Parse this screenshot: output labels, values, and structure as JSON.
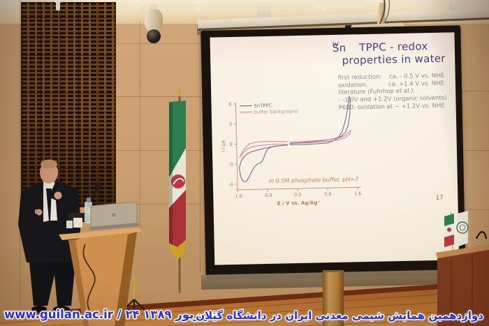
{
  "banner": {
    "left_text": "www.guilan.ac.ir / ۲۴ شهریور ۱۳۸۹",
    "right_text": "دوازدهمین همایش شیمی معدنی ایران در دانشگاه گیلان"
  },
  "slide": {
    "title_prefix": "Sn",
    "title_sup": "IV",
    "title_rest": "TPPC - redox properties in water",
    "info_lines": [
      "first reduction:    ca. - 0.5 V vs. NHE",
      "oxidation:           ca. +1.4 V vs. NHE",
      "literature (Fuhrhop et al.):",
      "- -1.0V and +1.2V (organic solvents)",
      "P680: oxidation at ~ +1.2V vs. NHE"
    ],
    "page_number": "17"
  },
  "chart_data": {
    "type": "line",
    "subtype": "cyclic-voltammogram",
    "title": "",
    "xlabel": "E / V vs. Ag/Ag⁺",
    "ylabel": "I / µA",
    "xlim": [
      -1.6,
      1.6
    ],
    "ylim": [
      -6,
      6
    ],
    "grid": false,
    "legend_position": "top-left",
    "annotation": "in 0.5M phosphate buffer, pH=7",
    "x_tick_values": [
      -1.6,
      -0.8,
      0.0,
      0.8,
      1.6
    ],
    "x_tick_labels": [
      "-1,6",
      "-0,8",
      "0,0",
      "0,8",
      "1,6"
    ],
    "y_tick_values": [
      6,
      3,
      0,
      -3,
      -6
    ],
    "y_tick_labels": [
      "6",
      "3",
      "0",
      "-3",
      "-6"
    ],
    "series": [
      {
        "name": "SnTPPC",
        "color": "#70708f",
        "segments": [
          [
            [
              -0.18,
              -0.25
            ],
            [
              0.2,
              -0.28
            ],
            [
              0.5,
              -0.22
            ],
            [
              0.8,
              -0.12
            ],
            [
              1.0,
              0.2
            ],
            [
              1.12,
              0.7
            ],
            [
              1.22,
              1.6
            ],
            [
              1.3,
              3.0
            ],
            [
              1.37,
              4.8
            ],
            [
              1.42,
              6.8
            ],
            [
              1.45,
              6.2
            ],
            [
              1.43,
              4.2
            ],
            [
              1.38,
              2.4
            ],
            [
              1.3,
              1.4
            ],
            [
              1.18,
              0.8
            ],
            [
              1.0,
              0.5
            ],
            [
              0.7,
              0.25
            ],
            [
              0.4,
              0.1
            ],
            [
              0.1,
              0.0
            ],
            [
              -0.18,
              -0.05
            ]
          ],
          [
            [
              -0.25,
              -0.3
            ],
            [
              -0.5,
              -0.4
            ],
            [
              -0.68,
              -0.55
            ],
            [
              -0.78,
              -0.85
            ],
            [
              -0.85,
              -1.6
            ],
            [
              -0.9,
              -2.4
            ],
            [
              -0.97,
              -2.85
            ],
            [
              -1.05,
              -3.05
            ],
            [
              -1.12,
              -3.35
            ],
            [
              -1.2,
              -4.0
            ],
            [
              -1.28,
              -4.9
            ],
            [
              -1.35,
              -5.55
            ],
            [
              -1.42,
              -5.65
            ],
            [
              -1.48,
              -5.35
            ],
            [
              -1.52,
              -4.6
            ],
            [
              -1.54,
              -3.6
            ],
            [
              -1.5,
              -2.7
            ],
            [
              -1.44,
              -2.1
            ],
            [
              -1.35,
              -1.6
            ],
            [
              -1.22,
              -1.2
            ],
            [
              -1.08,
              -1.0
            ],
            [
              -0.92,
              -0.8
            ],
            [
              -0.75,
              -0.6
            ],
            [
              -0.55,
              -0.42
            ],
            [
              -0.35,
              -0.33
            ],
            [
              -0.25,
              -0.3
            ]
          ]
        ]
      },
      {
        "name": "buffer background",
        "color": "#cf8e9b",
        "segments": [
          [
            [
              -0.18,
              0.12
            ],
            [
              0.2,
              0.18
            ],
            [
              0.6,
              0.28
            ],
            [
              0.95,
              0.4
            ],
            [
              1.15,
              0.6
            ],
            [
              1.3,
              1.0
            ],
            [
              1.4,
              1.5
            ],
            [
              1.45,
              1.75
            ],
            [
              1.42,
              1.2
            ],
            [
              1.32,
              0.7
            ],
            [
              1.15,
              0.35
            ],
            [
              0.9,
              0.15
            ],
            [
              0.55,
              0.02
            ],
            [
              0.2,
              -0.05
            ],
            [
              -0.18,
              -0.1
            ]
          ],
          [
            [
              -0.25,
              0.22
            ],
            [
              -0.55,
              0.28
            ],
            [
              -0.85,
              0.3
            ],
            [
              -1.1,
              0.22
            ],
            [
              -1.25,
              0.0
            ],
            [
              -1.35,
              -0.4
            ],
            [
              -1.43,
              -1.0
            ],
            [
              -1.5,
              -1.7
            ],
            [
              -1.53,
              -2.05
            ],
            [
              -1.49,
              -1.75
            ],
            [
              -1.42,
              -1.25
            ],
            [
              -1.32,
              -0.75
            ],
            [
              -1.18,
              -0.45
            ],
            [
              -1.0,
              -0.28
            ],
            [
              -0.75,
              -0.2
            ],
            [
              -0.5,
              -0.18
            ],
            [
              -0.25,
              -0.2
            ]
          ]
        ]
      }
    ]
  },
  "colors": {
    "banner_text": "#2a2ed6",
    "slide_title": "#4a3f75",
    "slide_info_text": "#87928f",
    "chart_axis_text": "#b2805a",
    "chart_axis_line": "#bb9e7b",
    "flag_green": "#2e7d4f",
    "flag_white": "#eae4d6",
    "flag_red": "#a83236"
  }
}
